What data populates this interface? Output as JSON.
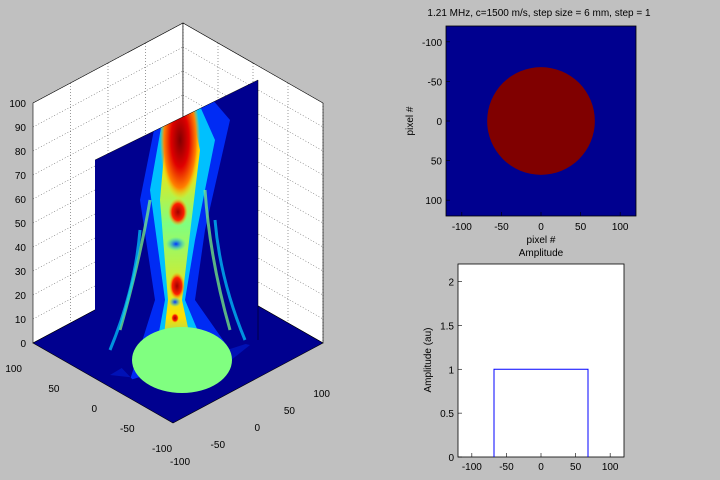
{
  "colors": {
    "figure_bg": "#c0c0c0",
    "axes_bg": "#ffffff",
    "jet_dark_blue": "#00008f",
    "jet_blue": "#0030ff",
    "jet_cyan": "#00d0ff",
    "jet_green": "#80ff80",
    "jet_yellow": "#ffe000",
    "jet_red": "#ff2000",
    "jet_dark_red": "#800000",
    "line_blue": "#0000ff"
  },
  "chart_data": [
    {
      "id": "pressure-field-3d",
      "type": "surface",
      "title": "",
      "colormap": "jet",
      "grid": true,
      "x_ticks": [
        "100",
        "50",
        "0",
        "-50",
        "-100"
      ],
      "y_ticks": [
        "100",
        "50",
        "0",
        "-50",
        "-100"
      ],
      "z_ticks": [
        "0",
        "10",
        "20",
        "30",
        "40",
        "50",
        "60",
        "70",
        "80",
        "90",
        "100"
      ],
      "xlim": [
        -100,
        100
      ],
      "ylim": [
        -100,
        100
      ],
      "zlim": [
        0,
        100
      ]
    },
    {
      "id": "source-map",
      "type": "heatmap",
      "title": "1.21 MHz, c=1500 m/s, step size = 6 mm, step = 1",
      "xlabel": "pixel #",
      "ylabel": "pixel #",
      "x_ticks": [
        "-100",
        "-50",
        "0",
        "50",
        "100"
      ],
      "y_ticks": [
        "-100",
        "-50",
        "0",
        "50",
        "100"
      ],
      "xlim": [
        -120,
        120
      ],
      "ylim": [
        -120,
        120
      ],
      "disk_center": [
        0,
        0
      ],
      "disk_radius": 68,
      "inside_value": "high",
      "outside_value": "low"
    },
    {
      "id": "amplitude-profile",
      "type": "line",
      "title": "Amplitude",
      "xlabel": "",
      "ylabel": "Amplitude (au)",
      "x_ticks": [
        "-100",
        "-50",
        "0",
        "50",
        "100"
      ],
      "y_ticks": [
        "0",
        "0.5",
        "1",
        "1.5",
        "2"
      ],
      "xlim": [
        -120,
        120
      ],
      "ylim": [
        0,
        2.2
      ],
      "grid": false,
      "series": [
        {
          "x": [
            -68,
            -68,
            68,
            68
          ],
          "y": [
            0,
            1,
            1,
            0
          ]
        }
      ]
    }
  ]
}
